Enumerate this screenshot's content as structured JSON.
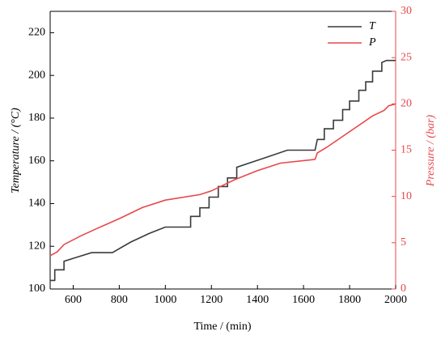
{
  "chart_data": {
    "type": "line",
    "xlabel": "Time / (min)",
    "ylabel": "Temperature / (°C)",
    "y2label": "Pressure / (bar)",
    "xlim": [
      500,
      2000
    ],
    "xticks": [
      600,
      800,
      1000,
      1200,
      1400,
      1600,
      1800,
      2000
    ],
    "ylim": [
      100,
      230
    ],
    "yticks": [
      100,
      120,
      140,
      160,
      180,
      200,
      220
    ],
    "y2lim": [
      0,
      30
    ],
    "y2ticks": [
      0,
      5,
      10,
      15,
      20,
      25,
      30
    ],
    "y2color": "#e8474a",
    "legend": "upper right",
    "series": [
      {
        "name": "T",
        "color": "#3a3a3a",
        "x": [
          500,
          520,
          520,
          560,
          560,
          620,
          680,
          770,
          850,
          930,
          1000,
          1110,
          1110,
          1150,
          1150,
          1190,
          1190,
          1230,
          1230,
          1270,
          1270,
          1310,
          1310,
          1420,
          1530,
          1650,
          1660,
          1690,
          1690,
          1730,
          1730,
          1770,
          1770,
          1800,
          1800,
          1840,
          1840,
          1870,
          1870,
          1900,
          1900,
          1940,
          1940,
          1960,
          2000
        ],
        "values": [
          104,
          104,
          109,
          109,
          113,
          115,
          117,
          117,
          122,
          126,
          129,
          129,
          134,
          134,
          138,
          138,
          143,
          143,
          148,
          148,
          152,
          152,
          157,
          161,
          165,
          165,
          170,
          170,
          175,
          175,
          179,
          179,
          184,
          184,
          188,
          188,
          193,
          193,
          197,
          197,
          202,
          202,
          206,
          207,
          207
        ]
      },
      {
        "name": "P",
        "color": "#e8474a",
        "axis": "y2",
        "x": [
          500,
          530,
          560,
          630,
          700,
          800,
          900,
          1000,
          1150,
          1200,
          1300,
          1400,
          1500,
          1650,
          1660,
          1700,
          1800,
          1900,
          1950,
          1970,
          2000
        ],
        "values": [
          3.6,
          4.0,
          4.8,
          5.7,
          6.5,
          7.6,
          8.8,
          9.6,
          10.2,
          10.6,
          11.8,
          12.8,
          13.6,
          14.0,
          14.7,
          15.3,
          17.0,
          18.7,
          19.3,
          19.8,
          20.0
        ]
      }
    ]
  }
}
